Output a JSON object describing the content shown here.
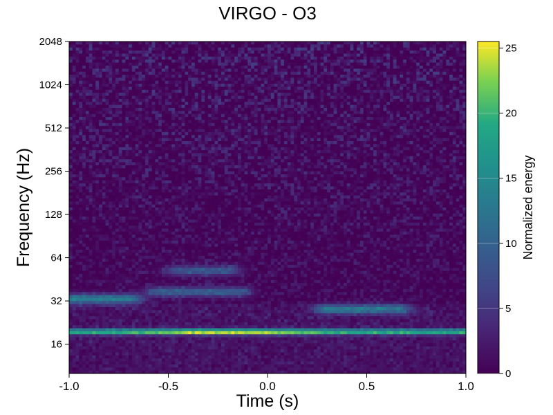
{
  "chart_data": {
    "type": "heatmap",
    "title": "VIRGO - O3",
    "xlabel": "Time (s)",
    "ylabel": "Frequency (Hz)",
    "xlim": [
      -1.0,
      1.0
    ],
    "ylim": [
      10,
      2048
    ],
    "yscale": "log2",
    "x_ticks": [
      "-1.0",
      "-0.5",
      "0.0",
      "0.5",
      "1.0"
    ],
    "x_tick_values": [
      -1.0,
      -0.5,
      0.0,
      0.5,
      1.0
    ],
    "y_ticks": [
      "16",
      "32",
      "64",
      "128",
      "256",
      "512",
      "1024",
      "2048"
    ],
    "y_tick_values": [
      16,
      32,
      64,
      128,
      256,
      512,
      1024,
      2048
    ],
    "colorbar": {
      "label": "Normalized energy",
      "range": [
        0,
        25.5
      ],
      "ticks": [
        "0",
        "5",
        "10",
        "15",
        "20",
        "25"
      ],
      "tick_values": [
        0,
        5,
        10,
        15,
        20,
        25
      ],
      "colormap": "viridis"
    },
    "features": [
      {
        "t_start": -1.0,
        "t_end": 1.0,
        "freq": 19.5,
        "energy": 25
      },
      {
        "t_start": -1.0,
        "t_end": -0.7,
        "freq": 33,
        "energy": 13
      },
      {
        "t_start": -0.55,
        "t_end": -0.15,
        "freq": 37,
        "energy": 9
      },
      {
        "t_start": 0.3,
        "t_end": 0.65,
        "freq": 28,
        "energy": 11
      },
      {
        "t_start": -0.45,
        "t_end": -0.2,
        "freq": 52,
        "energy": 8
      }
    ],
    "background_energy": [
      0,
      5
    ]
  }
}
